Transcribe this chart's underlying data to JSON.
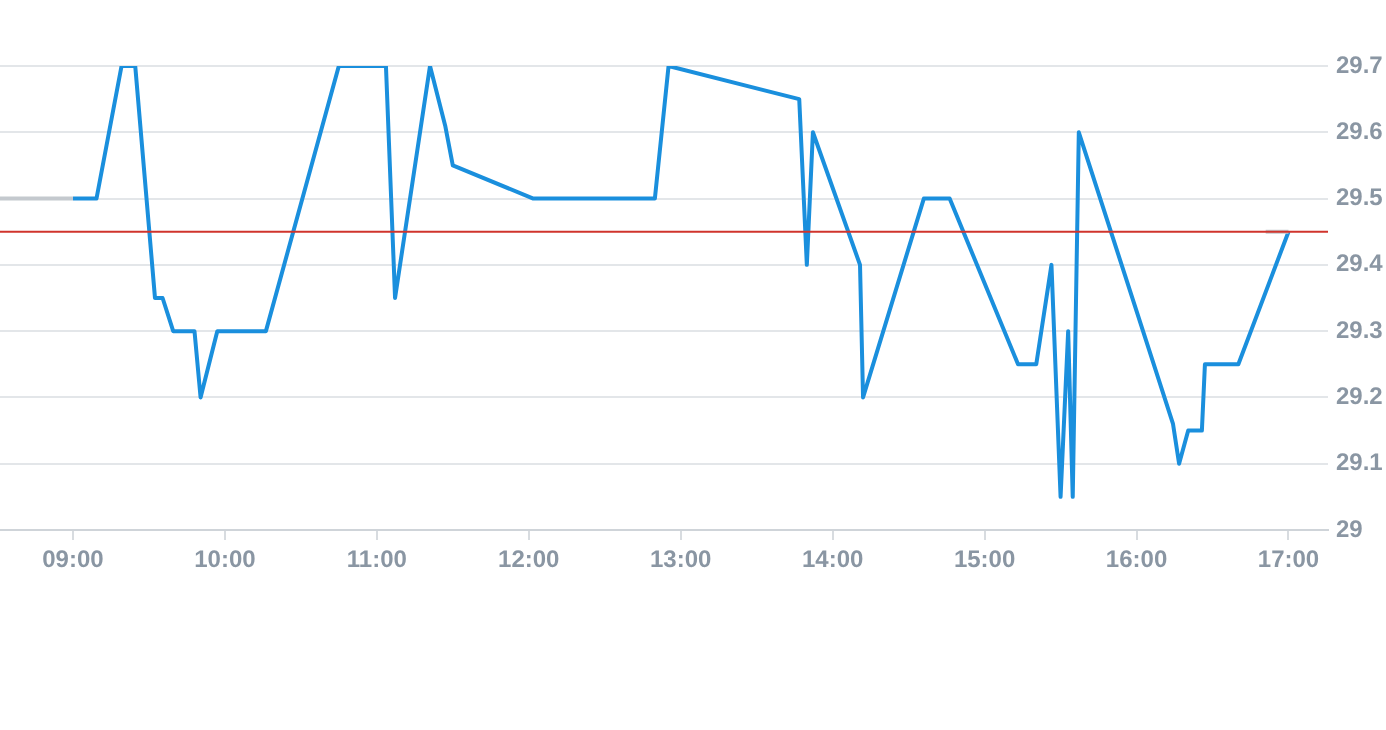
{
  "chart_data": {
    "type": "line",
    "xlim": [
      8.52,
      17.26
    ],
    "ylim": [
      29,
      29.7
    ],
    "xticks": [
      {
        "value": 9,
        "label": "09:00"
      },
      {
        "value": 10,
        "label": "10:00"
      },
      {
        "value": 11,
        "label": "11:00"
      },
      {
        "value": 12,
        "label": "12:00"
      },
      {
        "value": 13,
        "label": "13:00"
      },
      {
        "value": 14,
        "label": "14:00"
      },
      {
        "value": 15,
        "label": "15:00"
      },
      {
        "value": 16,
        "label": "16:00"
      },
      {
        "value": 17,
        "label": "17:00"
      }
    ],
    "yticks": [
      29,
      29.1,
      29.2,
      29.3,
      29.4,
      29.5,
      29.6,
      29.7
    ],
    "grid": "y",
    "legend": false,
    "marker": "none",
    "line_style": "solid",
    "ref_lines": [
      {
        "axis": "y",
        "value": 29.45,
        "color": "#d0342c"
      }
    ],
    "series": [
      {
        "color": "#c4c9ce",
        "x": [
          8.52,
          9.0,
          null,
          16.85,
          17.0
        ],
        "values": [
          29.5,
          29.5,
          null,
          29.45,
          29.45
        ]
      },
      {
        "color": "#1a8fdd",
        "x": [
          9.0,
          9.155,
          9.32,
          9.41,
          9.54,
          9.59,
          9.66,
          9.8,
          9.84,
          9.95,
          10.27,
          10.75,
          11.06,
          11.12,
          11.35,
          11.45,
          11.5,
          12.03,
          12.83,
          12.92,
          13.78,
          13.83,
          13.87,
          14.18,
          14.2,
          14.6,
          14.77,
          15.22,
          15.34,
          15.44,
          15.5,
          15.55,
          15.58,
          15.62,
          16.24,
          16.28,
          16.34,
          16.43,
          16.45,
          16.67,
          17.0
        ],
        "values": [
          29.5,
          29.5,
          29.7,
          29.7,
          29.35,
          29.35,
          29.3,
          29.3,
          29.2,
          29.3,
          29.3,
          29.7,
          29.7,
          29.35,
          29.7,
          29.61,
          29.55,
          29.5,
          29.5,
          29.7,
          29.65,
          29.4,
          29.6,
          29.4,
          29.2,
          29.5,
          29.5,
          29.25,
          29.25,
          29.4,
          29.05,
          29.3,
          29.05,
          29.6,
          29.16,
          29.1,
          29.15,
          29.15,
          29.25,
          29.25,
          29.45
        ]
      }
    ]
  }
}
